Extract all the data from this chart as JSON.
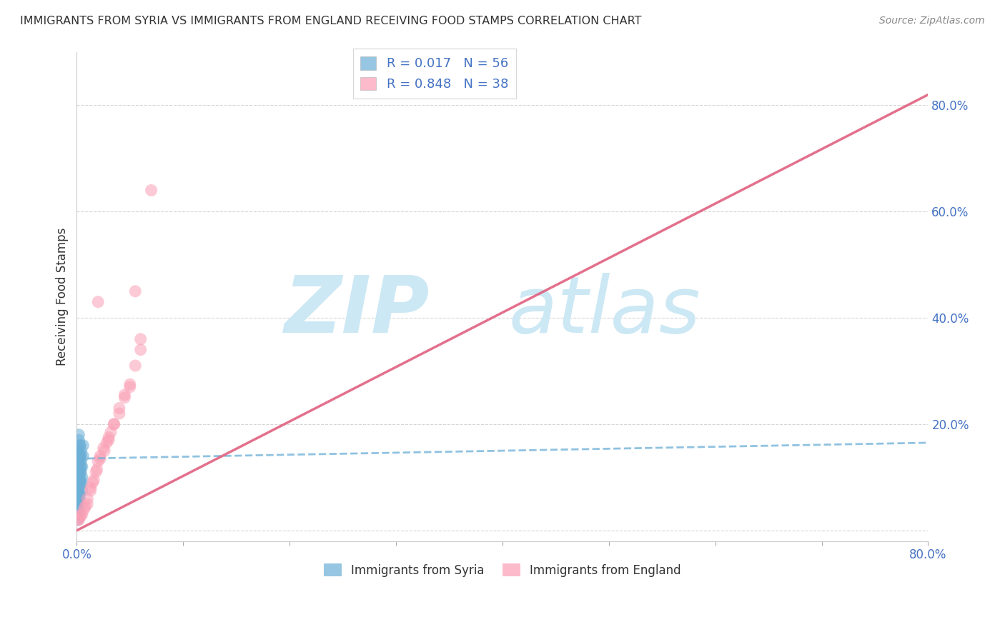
{
  "title": "IMMIGRANTS FROM SYRIA VS IMMIGRANTS FROM ENGLAND RECEIVING FOOD STAMPS CORRELATION CHART",
  "source": "Source: ZipAtlas.com",
  "ylabel": "Receiving Food Stamps",
  "xlim": [
    0.0,
    0.8
  ],
  "ylim": [
    -0.02,
    0.9
  ],
  "legend_syria_R": "0.017",
  "legend_syria_N": "56",
  "legend_england_R": "0.848",
  "legend_england_N": "38",
  "syria_color": "#6baed6",
  "england_color": "#fa9fb5",
  "syria_line_color": "#6baed6",
  "england_line_color": "#e06080",
  "watermark_color": "#cce8f4",
  "background_color": "#ffffff",
  "syria_scatter_x": [
    0.001,
    0.002,
    0.001,
    0.003,
    0.001,
    0.002,
    0.003,
    0.001,
    0.002,
    0.001,
    0.001,
    0.002,
    0.001,
    0.002,
    0.001,
    0.003,
    0.002,
    0.001,
    0.002,
    0.003,
    0.001,
    0.001,
    0.002,
    0.001,
    0.002,
    0.003,
    0.004,
    0.002,
    0.001,
    0.001,
    0.001,
    0.001,
    0.002,
    0.002,
    0.003,
    0.003,
    0.004,
    0.004,
    0.005,
    0.005,
    0.001,
    0.002,
    0.003,
    0.003,
    0.004,
    0.004,
    0.005,
    0.005,
    0.006,
    0.006,
    0.001,
    0.001,
    0.002,
    0.002,
    0.003,
    0.003
  ],
  "syria_scatter_y": [
    0.145,
    0.13,
    0.105,
    0.09,
    0.12,
    0.14,
    0.16,
    0.1,
    0.13,
    0.08,
    0.06,
    0.07,
    0.09,
    0.11,
    0.05,
    0.14,
    0.17,
    0.15,
    0.18,
    0.16,
    0.04,
    0.08,
    0.1,
    0.07,
    0.115,
    0.135,
    0.12,
    0.095,
    0.06,
    0.05,
    0.03,
    0.02,
    0.06,
    0.085,
    0.1,
    0.12,
    0.14,
    0.11,
    0.09,
    0.075,
    0.04,
    0.07,
    0.09,
    0.11,
    0.13,
    0.15,
    0.1,
    0.12,
    0.16,
    0.14,
    0.03,
    0.05,
    0.07,
    0.09,
    0.065,
    0.085
  ],
  "england_scatter_x": [
    0.001,
    0.003,
    0.005,
    0.008,
    0.01,
    0.013,
    0.015,
    0.018,
    0.02,
    0.022,
    0.025,
    0.028,
    0.03,
    0.032,
    0.035,
    0.04,
    0.045,
    0.05,
    0.055,
    0.06,
    0.002,
    0.004,
    0.007,
    0.01,
    0.013,
    0.016,
    0.019,
    0.022,
    0.026,
    0.03,
    0.035,
    0.04,
    0.045,
    0.05,
    0.06,
    0.055,
    0.02,
    0.07
  ],
  "england_scatter_y": [
    0.02,
    0.025,
    0.03,
    0.045,
    0.05,
    0.08,
    0.09,
    0.11,
    0.13,
    0.14,
    0.155,
    0.165,
    0.17,
    0.185,
    0.2,
    0.22,
    0.25,
    0.27,
    0.31,
    0.34,
    0.02,
    0.03,
    0.04,
    0.06,
    0.075,
    0.095,
    0.115,
    0.135,
    0.15,
    0.175,
    0.2,
    0.23,
    0.255,
    0.275,
    0.36,
    0.45,
    0.43,
    0.64
  ],
  "syria_line_x": [
    0.0,
    0.8
  ],
  "syria_line_y": [
    0.135,
    0.165
  ],
  "england_line_x": [
    0.0,
    0.8
  ],
  "england_line_y": [
    0.0,
    0.82
  ]
}
